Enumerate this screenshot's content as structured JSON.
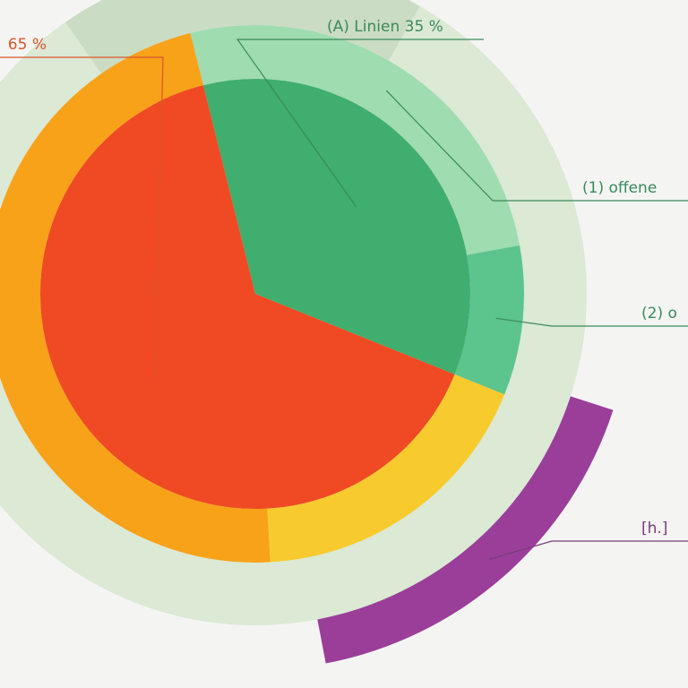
{
  "chart_data": {
    "type": "nested-pie",
    "rings": [
      {
        "values": [
          35,
          65
        ],
        "colors": [
          "#3fae6e",
          "#ef4a23"
        ],
        "labels": [
          "(A) Linien 35 %",
          "65 %"
        ]
      },
      {
        "values": [
          26,
          9,
          18,
          47
        ],
        "colors": [
          "#9fdcb0",
          "#5cc48d",
          "#f7cb2e",
          "#f8a21a"
        ],
        "labels": [
          "(1) offene",
          "(2) o",
          null,
          null
        ]
      },
      {
        "values": [
          18,
          82
        ],
        "colors": [
          "#cbdcc4",
          "#dbe9d5"
        ],
        "labels": [
          null,
          null
        ]
      },
      {
        "values": [
          17
        ],
        "colors": [
          "#9b3e9a"
        ],
        "labels": [
          "[h.]"
        ]
      }
    ]
  }
}
